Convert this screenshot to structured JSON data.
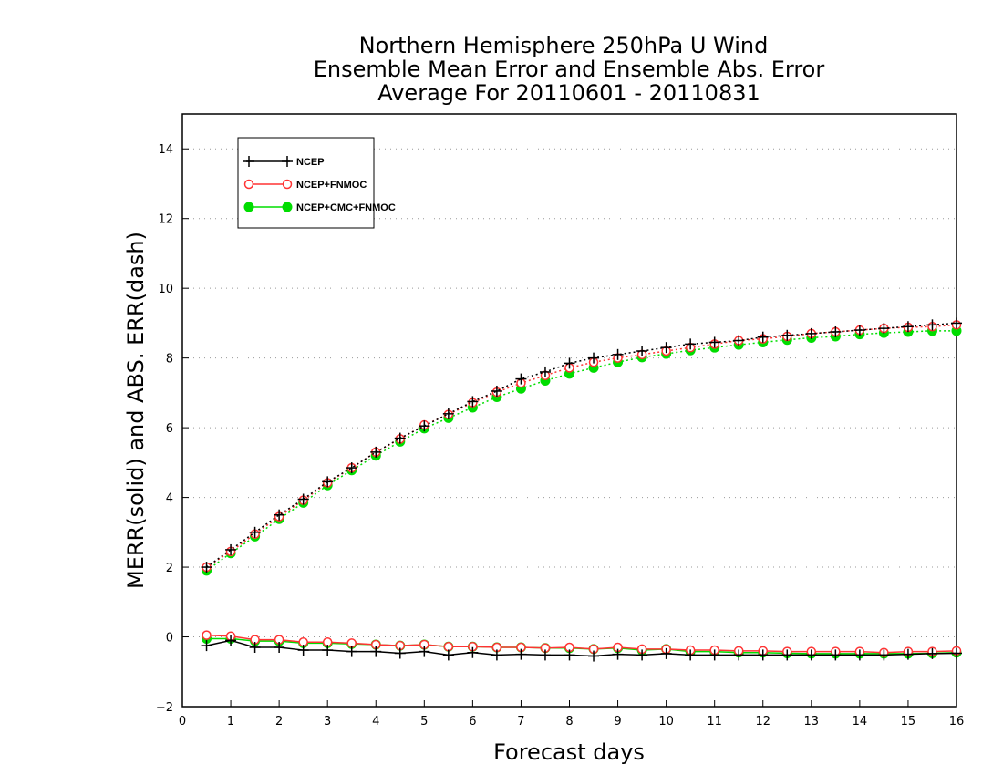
{
  "chart_data": {
    "type": "line",
    "title": [
      "Northern Hemisphere 250hPa U Wind",
      "Ensemble Mean Error and Ensemble Abs. Error",
      "Average For 20110601 - 20110831"
    ],
    "xlabel": "Forecast days",
    "ylabel": "MERR(solid) and ABS. ERR(dash)",
    "xlim": [
      0,
      16
    ],
    "ylim": [
      -2,
      15
    ],
    "xticks": [
      0,
      1,
      2,
      3,
      4,
      5,
      6,
      7,
      8,
      9,
      10,
      11,
      12,
      13,
      14,
      15,
      16
    ],
    "yticks": [
      -2,
      0,
      2,
      4,
      6,
      8,
      10,
      12,
      14
    ],
    "grid": true,
    "legend_position": "top-left",
    "x": [
      0.5,
      1,
      1.5,
      2,
      2.5,
      3,
      3.5,
      4,
      4.5,
      5,
      5.5,
      6,
      6.5,
      7,
      7.5,
      8,
      8.5,
      9,
      9.5,
      10,
      10.5,
      11,
      11.5,
      12,
      12.5,
      13,
      13.5,
      14,
      14.5,
      15,
      15.5,
      16
    ],
    "series": [
      {
        "name": "NCEP",
        "color": "#000000",
        "marker": "plus",
        "merr": [
          -0.25,
          -0.1,
          -0.3,
          -0.3,
          -0.38,
          -0.38,
          -0.42,
          -0.42,
          -0.47,
          -0.42,
          -0.52,
          -0.45,
          -0.52,
          -0.5,
          -0.52,
          -0.52,
          -0.55,
          -0.5,
          -0.52,
          -0.48,
          -0.52,
          -0.52,
          -0.52,
          -0.52,
          -0.52,
          -0.52,
          -0.52,
          -0.52,
          -0.52,
          -0.5,
          -0.48,
          -0.47
        ],
        "abs_err": [
          2.0,
          2.5,
          3.0,
          3.5,
          3.95,
          4.45,
          4.85,
          5.3,
          5.7,
          6.05,
          6.4,
          6.75,
          7.05,
          7.4,
          7.6,
          7.85,
          8.0,
          8.1,
          8.2,
          8.3,
          8.4,
          8.45,
          8.5,
          8.6,
          8.65,
          8.7,
          8.75,
          8.8,
          8.85,
          8.9,
          8.95,
          9.0
        ]
      },
      {
        "name": "NCEP+FNMOC",
        "color": "#ff3333",
        "marker": "circle-open",
        "merr": [
          0.05,
          0.02,
          -0.08,
          -0.08,
          -0.15,
          -0.15,
          -0.18,
          -0.22,
          -0.25,
          -0.22,
          -0.28,
          -0.28,
          -0.3,
          -0.3,
          -0.32,
          -0.3,
          -0.35,
          -0.3,
          -0.35,
          -0.35,
          -0.38,
          -0.38,
          -0.4,
          -0.4,
          -0.42,
          -0.42,
          -0.42,
          -0.42,
          -0.45,
          -0.42,
          -0.42,
          -0.4
        ],
        "abs_err": [
          2.0,
          2.45,
          2.95,
          3.45,
          3.92,
          4.42,
          4.85,
          5.3,
          5.68,
          6.08,
          6.38,
          6.72,
          7.02,
          7.28,
          7.5,
          7.72,
          7.88,
          8.0,
          8.1,
          8.2,
          8.3,
          8.4,
          8.5,
          8.55,
          8.62,
          8.7,
          8.75,
          8.8,
          8.85,
          8.88,
          8.9,
          8.95
        ]
      },
      {
        "name": "NCEP+CMC+FNMOC",
        "color": "#00dd00",
        "marker": "circle-filled",
        "merr": [
          -0.05,
          -0.05,
          -0.12,
          -0.12,
          -0.18,
          -0.18,
          -0.2,
          -0.22,
          -0.25,
          -0.22,
          -0.28,
          -0.28,
          -0.3,
          -0.3,
          -0.32,
          -0.32,
          -0.35,
          -0.32,
          -0.38,
          -0.35,
          -0.42,
          -0.42,
          -0.45,
          -0.45,
          -0.47,
          -0.48,
          -0.48,
          -0.48,
          -0.48,
          -0.48,
          -0.47,
          -0.45
        ],
        "abs_err": [
          1.9,
          2.4,
          2.88,
          3.38,
          3.85,
          4.35,
          4.78,
          5.2,
          5.6,
          5.98,
          6.28,
          6.58,
          6.88,
          7.12,
          7.35,
          7.55,
          7.72,
          7.88,
          8.02,
          8.12,
          8.22,
          8.3,
          8.38,
          8.45,
          8.52,
          8.58,
          8.62,
          8.68,
          8.72,
          8.75,
          8.78,
          8.78
        ]
      }
    ]
  }
}
